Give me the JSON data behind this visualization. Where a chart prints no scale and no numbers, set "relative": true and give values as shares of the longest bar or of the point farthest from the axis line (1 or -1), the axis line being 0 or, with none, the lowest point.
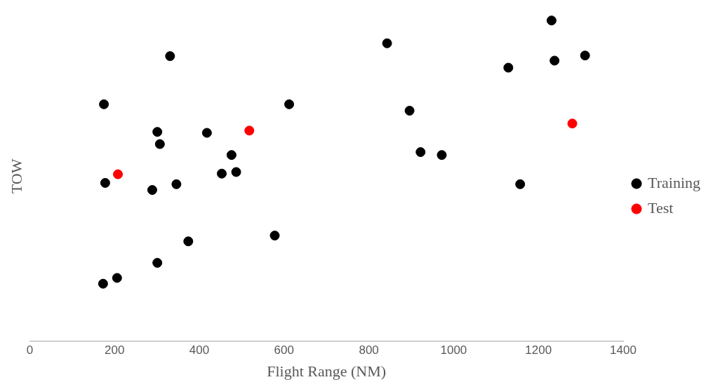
{
  "chart_data": {
    "type": "scatter",
    "xlabel": "Flight Range (NM)",
    "ylabel": "TOW",
    "relative": true,
    "xlim": [
      0,
      1400
    ],
    "xticks": [
      0,
      200,
      400,
      600,
      800,
      1000,
      1200,
      1400
    ],
    "grid": false,
    "legend": "right",
    "marker": "circle",
    "series": [
      {
        "name": "Training",
        "color": "#000000",
        "x": [
          175,
          331,
          301,
          307,
          178,
          289,
          346,
          418,
          476,
          453,
          487,
          612,
          374,
          578,
          301,
          206,
          173,
          843,
          896,
          922,
          972,
          1129,
          1231,
          1238,
          1310,
          1157
        ],
        "values": [
          0.739,
          0.889,
          0.653,
          0.615,
          0.494,
          0.472,
          0.49,
          0.65,
          0.581,
          0.523,
          0.528,
          0.739,
          0.312,
          0.33,
          0.245,
          0.198,
          0.18,
          0.929,
          0.719,
          0.59,
          0.581,
          0.853,
          1,
          0.875,
          0.891,
          0.49
        ]
      },
      {
        "name": "Test",
        "color": "#ff0000",
        "x": [
          208,
          518,
          1280
        ],
        "values": [
          0.521,
          0.657,
          0.679
        ]
      }
    ]
  }
}
